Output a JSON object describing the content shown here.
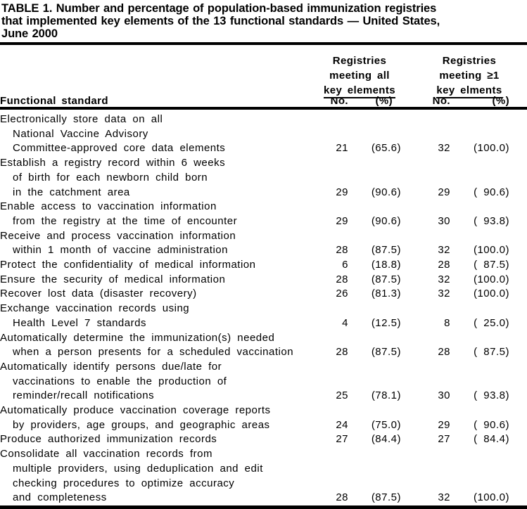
{
  "title_lines": [
    "TABLE 1. Number and percentage of population-based immunization registries",
    "that implemented key elements of the 13 functional standards — United States,",
    "June 2000"
  ],
  "header": {
    "row_label": "Functional standard",
    "group_all": [
      "Registries",
      "meeting all",
      "key elements"
    ],
    "group_ge1": [
      "Registries",
      "meeting ≥1",
      "key elments"
    ],
    "no": "No.",
    "pct": "(%)"
  },
  "rows": [
    {
      "label_lines": [
        "Electronically store data on all",
        "National Vaccine Advisory",
        "Committee-approved core data elements"
      ],
      "no_all": "21",
      "pct_all": "(65.6)",
      "no_ge1": "32",
      "pct_ge1": "(100.0)"
    },
    {
      "label_lines": [
        "Establish a registry record within 6 weeks",
        "of birth for each newborn child born",
        "in the catchment area"
      ],
      "no_all": "29",
      "pct_all": "(90.6)",
      "no_ge1": "29",
      "pct_ge1": "( 90.6)"
    },
    {
      "label_lines": [
        "Enable access to vaccination information",
        "from the registry at the time of encounter"
      ],
      "no_all": "29",
      "pct_all": "(90.6)",
      "no_ge1": "30",
      "pct_ge1": "( 93.8)"
    },
    {
      "label_lines": [
        "Receive and process vaccination information",
        "within 1 month of vaccine administration"
      ],
      "no_all": "28",
      "pct_all": "(87.5)",
      "no_ge1": "32",
      "pct_ge1": "(100.0)"
    },
    {
      "label_lines": [
        "Protect the confidentiality of medical information"
      ],
      "no_all": "6",
      "pct_all": "(18.8)",
      "no_ge1": "28",
      "pct_ge1": "( 87.5)"
    },
    {
      "label_lines": [
        "Ensure the security of medical information"
      ],
      "no_all": "28",
      "pct_all": "(87.5)",
      "no_ge1": "32",
      "pct_ge1": "(100.0)"
    },
    {
      "label_lines": [
        "Recover lost data (disaster recovery)"
      ],
      "no_all": "26",
      "pct_all": "(81.3)",
      "no_ge1": "32",
      "pct_ge1": "(100.0)"
    },
    {
      "label_lines": [
        "Exchange vaccination records using",
        "Health Level 7 standards"
      ],
      "no_all": "4",
      "pct_all": "(12.5)",
      "no_ge1": "8",
      "pct_ge1": "( 25.0)"
    },
    {
      "label_lines": [
        "Automatically determine the immunization(s) needed",
        "when a person presents for a scheduled vaccination"
      ],
      "no_all": "28",
      "pct_all": "(87.5)",
      "no_ge1": "28",
      "pct_ge1": "( 87.5)"
    },
    {
      "label_lines": [
        "Automatically identify persons due/late for",
        "vaccinations to enable the production of",
        "reminder/recall notifications"
      ],
      "no_all": "25",
      "pct_all": "(78.1)",
      "no_ge1": "30",
      "pct_ge1": "( 93.8)"
    },
    {
      "label_lines": [
        "Automatically produce vaccination coverage reports",
        "by providers, age groups, and geographic areas"
      ],
      "no_all": "24",
      "pct_all": "(75.0)",
      "no_ge1": "29",
      "pct_ge1": "( 90.6)"
    },
    {
      "label_lines": [
        "Produce authorized immunization records"
      ],
      "no_all": "27",
      "pct_all": "(84.4)",
      "no_ge1": "27",
      "pct_ge1": "( 84.4)"
    },
    {
      "label_lines": [
        "Consolidate all vaccination records from",
        "multiple providers, using deduplication and edit",
        "checking procedures to optimize accuracy",
        "and completeness"
      ],
      "no_all": "28",
      "pct_all": "(87.5)",
      "no_ge1": "32",
      "pct_ge1": "(100.0)"
    }
  ],
  "colors": {
    "text": "#000000",
    "background": "#ffffff",
    "rule": "#000000"
  }
}
